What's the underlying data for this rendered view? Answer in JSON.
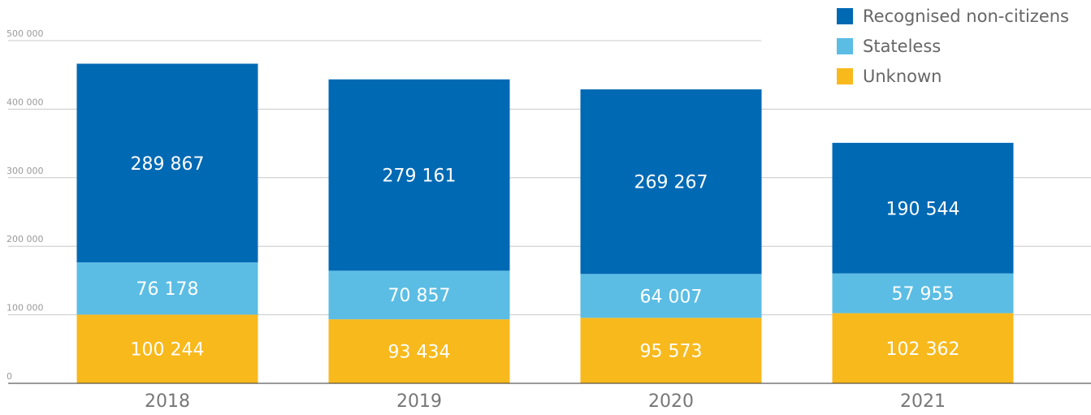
{
  "chart_data": {
    "type": "stacked_bar",
    "categories": [
      "2018",
      "2019",
      "2020",
      "2021"
    ],
    "series": [
      {
        "name": "Recognised non-citizens",
        "color": "#0069b4",
        "values": [
          289867,
          279161,
          269267,
          190544
        ],
        "value_labels": [
          "289 867",
          "279 161",
          "269 267",
          "190 544"
        ]
      },
      {
        "name": "Stateless",
        "color": "#5bbde4",
        "values": [
          76178,
          70857,
          64007,
          57955
        ],
        "value_labels": [
          "76 178",
          "70 857",
          "64 007",
          "57 955"
        ]
      },
      {
        "name": "Unknown",
        "color": "#f8b91d",
        "values": [
          100244,
          93434,
          95573,
          102362
        ],
        "value_labels": [
          "100 244",
          "93 434",
          "95 573",
          "102 362"
        ]
      }
    ],
    "ylim": [
      0,
      500000
    ],
    "yticks": [
      0,
      {
        "value": 100000,
        "label": "100 000"
      },
      {
        "value": 200000,
        "label": "200 000"
      },
      {
        "value": 300000,
        "label": "300 000"
      },
      {
        "value": 400000,
        "label": "400 000"
      },
      {
        "value": 500000,
        "label": "500 000"
      }
    ],
    "grid": true,
    "legend": "top-right"
  }
}
